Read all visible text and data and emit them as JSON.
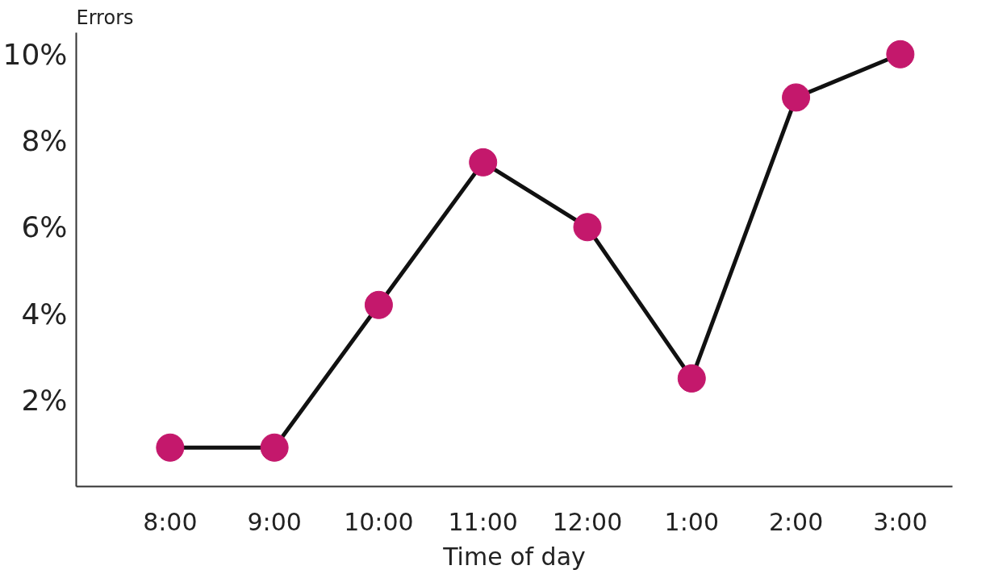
{
  "chart_data": {
    "type": "line",
    "ylabel": "Errors",
    "xlabel": "Time of day",
    "categories": [
      "8:00",
      "9:00",
      "10:00",
      "11:00",
      "12:00",
      "1:00",
      "2:00",
      "3:00"
    ],
    "series": [
      {
        "color": "#c4186c",
        "values": [
          0.9,
          0.9,
          4.2,
          7.5,
          6.0,
          2.5,
          9.0,
          10.0
        ]
      }
    ],
    "ylim": [
      0,
      10.5
    ],
    "yticks": [
      {
        "value": 2,
        "label": "2%"
      },
      {
        "value": 4,
        "label": "4%"
      },
      {
        "value": 6,
        "label": "6%"
      },
      {
        "value": 8,
        "label": "8%"
      },
      {
        "value": 10,
        "label": "10%"
      }
    ],
    "grid": false,
    "marker": "circle",
    "line_style": "solid"
  }
}
